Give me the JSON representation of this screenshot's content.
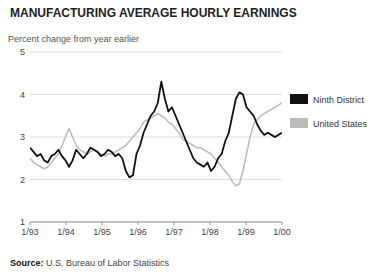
{
  "chart_data": {
    "type": "line",
    "title": "MANUFACTURING AVERAGE HOURLY EARNINGS",
    "y_label": "Percent change from year earlier",
    "source": "Source: U.S. Bureau of Labor Statistics",
    "x": [
      0,
      0.0986,
      0.1972,
      0.2958,
      0.3944,
      0.493,
      0.5915,
      0.6901,
      0.7887,
      0.8873,
      0.9859,
      1.0845,
      1.1831,
      1.2817,
      1.3803,
      1.4789,
      1.5775,
      1.6761,
      1.7746,
      1.8732,
      1.9718,
      2.0704,
      2.169,
      2.2676,
      2.3662,
      2.4648,
      2.5634,
      2.662,
      2.7606,
      2.8592,
      2.9577,
      3.0563,
      3.1549,
      3.2535,
      3.3521,
      3.4507,
      3.5493,
      3.6479,
      3.7465,
      3.8451,
      3.9437,
      4.0423,
      4.1408,
      4.2394,
      4.338,
      4.4366,
      4.5352,
      4.6338,
      4.7324,
      4.831,
      4.9296,
      5.0282,
      5.1268,
      5.2254,
      5.3239,
      5.4225,
      5.5211,
      5.6197,
      5.7183,
      5.8169,
      5.9155,
      6.0141,
      6.1127,
      6.2113,
      6.3099,
      6.4085,
      6.507,
      6.6056,
      6.7042,
      6.8028,
      6.9014,
      7
    ],
    "xlim": [
      0,
      7
    ],
    "xticks": [
      {
        "value": 0,
        "label": "1/93"
      },
      {
        "value": 1,
        "label": "1/94"
      },
      {
        "value": 2,
        "label": "1/95"
      },
      {
        "value": 3,
        "label": "1/96"
      },
      {
        "value": 4,
        "label": "1/97"
      },
      {
        "value": 5,
        "label": "1/98"
      },
      {
        "value": 6,
        "label": "1/99"
      },
      {
        "value": 7,
        "label": "1/00"
      }
    ],
    "ylim": [
      1,
      5
    ],
    "yticks": [
      1,
      2,
      3,
      4,
      5
    ],
    "grid": true,
    "legend": "right",
    "series": [
      {
        "name": "Ninth District",
        "color": "#111111",
        "values": [
          2.75,
          2.65,
          2.55,
          2.6,
          2.45,
          2.4,
          2.55,
          2.6,
          2.7,
          2.55,
          2.45,
          2.3,
          2.45,
          2.7,
          2.6,
          2.5,
          2.6,
          2.75,
          2.7,
          2.65,
          2.55,
          2.6,
          2.7,
          2.65,
          2.55,
          2.6,
          2.5,
          2.2,
          2.05,
          2.1,
          2.6,
          2.8,
          3.1,
          3.3,
          3.5,
          3.6,
          3.8,
          4.3,
          3.9,
          3.6,
          3.7,
          3.5,
          3.3,
          3.1,
          2.9,
          2.7,
          2.5,
          2.4,
          2.35,
          2.3,
          2.4,
          2.2,
          2.3,
          2.5,
          2.6,
          2.9,
          3.1,
          3.5,
          3.9,
          4.05,
          4.0,
          3.7,
          3.6,
          3.5,
          3.3,
          3.15,
          3.05,
          3.1,
          3.05,
          3.0,
          3.05,
          3.1
        ]
      },
      {
        "name": "United States",
        "color": "#bbbbbb",
        "values": [
          2.5,
          2.4,
          2.35,
          2.3,
          2.25,
          2.3,
          2.4,
          2.5,
          2.6,
          2.8,
          3.0,
          3.2,
          3.0,
          2.8,
          2.7,
          2.65,
          2.6,
          2.65,
          2.7,
          2.65,
          2.6,
          2.55,
          2.6,
          2.6,
          2.65,
          2.7,
          2.75,
          2.8,
          2.9,
          3.0,
          3.1,
          3.2,
          3.35,
          3.4,
          3.45,
          3.5,
          3.55,
          3.5,
          3.45,
          3.35,
          3.3,
          3.2,
          3.1,
          2.95,
          2.9,
          2.85,
          2.8,
          2.75,
          2.75,
          2.7,
          2.65,
          2.6,
          2.5,
          2.4,
          2.3,
          2.2,
          2.1,
          1.95,
          1.85,
          1.9,
          2.2,
          2.6,
          3.0,
          3.3,
          3.4,
          3.5,
          3.55,
          3.6,
          3.65,
          3.7,
          3.75,
          3.8
        ]
      }
    ]
  }
}
